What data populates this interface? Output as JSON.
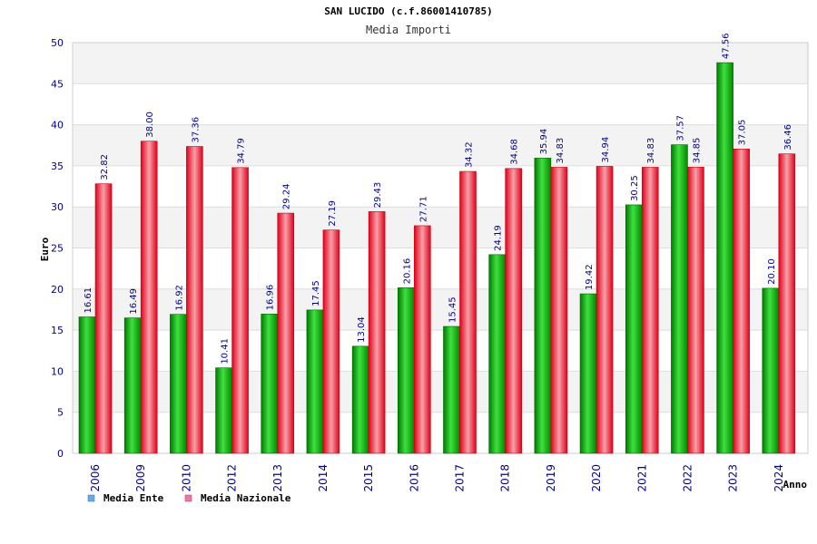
{
  "chart_data": {
    "type": "bar",
    "title": "SAN LUCIDO (c.f.86001410785)",
    "subtitle": "Media Importi",
    "xlabel": "Anno",
    "ylabel": "Euro",
    "ylim": [
      0,
      50
    ],
    "yticks": [
      0,
      5,
      10,
      15,
      20,
      25,
      30,
      35,
      40,
      45,
      50
    ],
    "categories": [
      "2006",
      "2009",
      "2010",
      "2012",
      "2013",
      "2014",
      "2015",
      "2016",
      "2017",
      "2018",
      "2019",
      "2020",
      "2021",
      "2022",
      "2023",
      "2024"
    ],
    "series": [
      {
        "name": "Media Ente",
        "color": "#00aa00",
        "values": [
          16.61,
          16.49,
          16.92,
          10.41,
          16.96,
          17.45,
          13.04,
          20.16,
          15.45,
          24.19,
          35.94,
          19.42,
          30.25,
          37.57,
          47.56,
          20.1
        ],
        "labels": [
          "16.61",
          "16.49",
          "16.92",
          "10.41",
          "16.96",
          "17.45",
          "13.04",
          "20.16",
          "15.45",
          "24.19",
          "35.94",
          "19.42",
          "30.25",
          "37.57",
          "47.56",
          "20.10"
        ]
      },
      {
        "name": "Media Nazionale",
        "color": "#e8001c",
        "values": [
          32.82,
          38.0,
          37.36,
          34.79,
          29.24,
          27.19,
          29.43,
          27.71,
          34.32,
          34.68,
          34.83,
          34.94,
          34.83,
          34.85,
          37.05,
          36.46
        ],
        "labels": [
          "32.82",
          "38.00",
          "37.36",
          "34.79",
          "29.24",
          "27.19",
          "29.43",
          "27.71",
          "34.32",
          "34.68",
          "34.83",
          "34.94",
          "34.83",
          "34.85",
          "37.05",
          "36.46"
        ]
      }
    ],
    "legend": {
      "placement": "bottom-left",
      "items": [
        {
          "label": "Media Ente",
          "color": "#6aa8e8"
        },
        {
          "label": "Media Nazionale",
          "color": "#e87aa8"
        }
      ]
    },
    "grid": true
  }
}
